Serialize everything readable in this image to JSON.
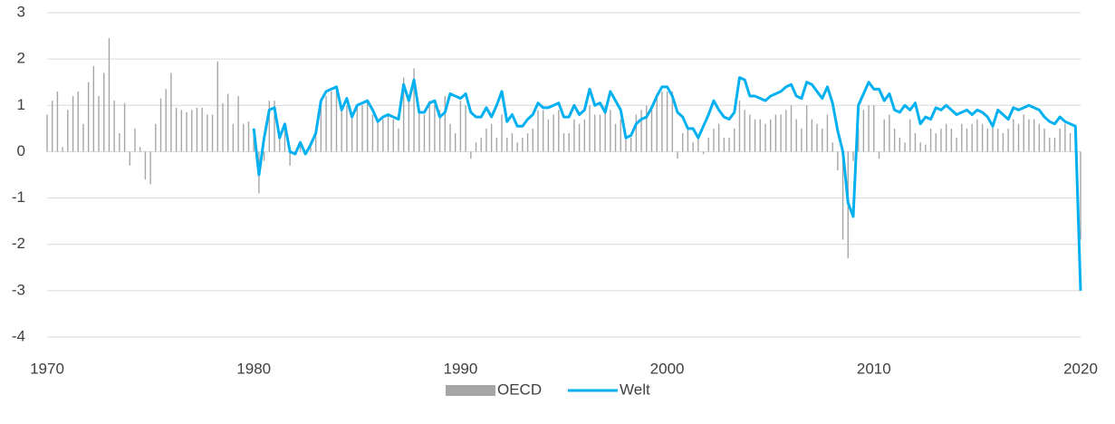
{
  "chart_data": {
    "type": "bar_line",
    "x": [
      1970,
      1970.25,
      1970.5,
      1970.75,
      1971,
      1971.25,
      1971.5,
      1971.75,
      1972,
      1972.25,
      1972.5,
      1972.75,
      1973,
      1973.25,
      1973.5,
      1973.75,
      1974,
      1974.25,
      1974.5,
      1974.75,
      1975,
      1975.25,
      1975.5,
      1975.75,
      1976,
      1976.25,
      1976.5,
      1976.75,
      1977,
      1977.25,
      1977.5,
      1977.75,
      1978,
      1978.25,
      1978.5,
      1978.75,
      1979,
      1979.25,
      1979.5,
      1979.75,
      1980,
      1980.25,
      1980.5,
      1980.75,
      1981,
      1981.25,
      1981.5,
      1981.75,
      1982,
      1982.25,
      1982.5,
      1982.75,
      1983,
      1983.25,
      1983.5,
      1983.75,
      1984,
      1984.25,
      1984.5,
      1984.75,
      1985,
      1985.25,
      1985.5,
      1985.75,
      1986,
      1986.25,
      1986.5,
      1986.75,
      1987,
      1987.25,
      1987.5,
      1987.75,
      1988,
      1988.25,
      1988.5,
      1988.75,
      1989,
      1989.25,
      1989.5,
      1989.75,
      1990,
      1990.25,
      1990.5,
      1990.75,
      1991,
      1991.25,
      1991.5,
      1991.75,
      1992,
      1992.25,
      1992.5,
      1992.75,
      1993,
      1993.25,
      1993.5,
      1993.75,
      1994,
      1994.25,
      1994.5,
      1994.75,
      1995,
      1995.25,
      1995.5,
      1995.75,
      1996,
      1996.25,
      1996.5,
      1996.75,
      1997,
      1997.25,
      1997.5,
      1997.75,
      1998,
      1998.25,
      1998.5,
      1998.75,
      1999,
      1999.25,
      1999.5,
      1999.75,
      2000,
      2000.25,
      2000.5,
      2000.75,
      2001,
      2001.25,
      2001.5,
      2001.75,
      2002,
      2002.25,
      2002.5,
      2002.75,
      2003,
      2003.25,
      2003.5,
      2003.75,
      2004,
      2004.25,
      2004.5,
      2004.75,
      2005,
      2005.25,
      2005.5,
      2005.75,
      2006,
      2006.25,
      2006.5,
      2006.75,
      2007,
      2007.25,
      2007.5,
      2007.75,
      2008,
      2008.25,
      2008.5,
      2008.75,
      2009,
      2009.25,
      2009.5,
      2009.75,
      2010,
      2010.25,
      2010.5,
      2010.75,
      2011,
      2011.25,
      2011.5,
      2011.75,
      2012,
      2012.25,
      2012.5,
      2012.75,
      2013,
      2013.25,
      2013.5,
      2013.75,
      2014,
      2014.25,
      2014.5,
      2014.75,
      2015,
      2015.25,
      2015.5,
      2015.75,
      2016,
      2016.25,
      2016.5,
      2016.75,
      2017,
      2017.25,
      2017.5,
      2017.75,
      2018,
      2018.25,
      2018.5,
      2018.75,
      2019,
      2019.25,
      2019.5,
      2019.75,
      2020
    ],
    "series": [
      {
        "name": "OECD",
        "type": "bar",
        "color": "#a6a6a6",
        "values": [
          0.8,
          1.1,
          1.3,
          0.1,
          0.9,
          1.2,
          1.3,
          0.6,
          1.5,
          1.85,
          1.2,
          1.7,
          2.45,
          1.1,
          0.4,
          1.05,
          -0.3,
          0.5,
          0.1,
          -0.6,
          -0.7,
          0.6,
          1.15,
          1.35,
          1.7,
          0.95,
          0.9,
          0.85,
          0.9,
          0.95,
          0.95,
          0.8,
          0.8,
          1.95,
          1.05,
          1.25,
          0.6,
          1.2,
          0.6,
          0.65,
          0.5,
          -0.9,
          -0.2,
          1.1,
          1.1,
          0.3,
          0.5,
          -0.3,
          0.0,
          0.2,
          0.0,
          0.2,
          0.4,
          1.1,
          1.2,
          1.3,
          1.3,
          0.9,
          1.0,
          0.8,
          1.0,
          1.0,
          1.1,
          0.8,
          0.7,
          0.7,
          0.8,
          0.7,
          0.5,
          1.6,
          1.1,
          1.8,
          0.9,
          0.8,
          1.1,
          1.0,
          0.9,
          1.2,
          0.6,
          0.4,
          1.1,
          1.0,
          -0.15,
          0.2,
          0.3,
          0.5,
          0.6,
          0.3,
          0.8,
          0.3,
          0.4,
          0.2,
          0.3,
          0.4,
          0.5,
          0.9,
          0.9,
          0.7,
          0.8,
          0.9,
          0.4,
          0.4,
          0.7,
          0.6,
          0.7,
          1.0,
          0.8,
          0.8,
          1.0,
          0.9,
          0.6,
          0.7,
          0.4,
          0.3,
          0.8,
          0.9,
          1.0,
          1.0,
          1.2,
          1.3,
          1.3,
          1.3,
          -0.15,
          0.4,
          0.5,
          0.2,
          0.3,
          -0.05,
          0.3,
          0.5,
          0.6,
          0.3,
          0.3,
          0.5,
          1.1,
          0.9,
          0.8,
          0.7,
          0.7,
          0.6,
          0.7,
          0.8,
          0.8,
          0.9,
          1.0,
          0.7,
          0.5,
          1.0,
          0.7,
          0.6,
          0.5,
          0.8,
          0.2,
          -0.4,
          -1.9,
          -2.3,
          -0.2,
          0.5,
          0.9,
          1.0,
          1.0,
          -0.15,
          0.7,
          0.8,
          0.5,
          0.3,
          0.2,
          0.7,
          0.4,
          0.2,
          0.15,
          0.5,
          0.4,
          0.5,
          0.6,
          0.5,
          0.3,
          0.6,
          0.5,
          0.6,
          0.7,
          0.6,
          0.5,
          0.6,
          0.5,
          0.4,
          0.5,
          0.7,
          0.6,
          0.8,
          0.7,
          0.7,
          0.6,
          0.5,
          0.3,
          0.3,
          0.5,
          0.6,
          0.4,
          0.4,
          -1.9
        ]
      },
      {
        "name": "Welt",
        "type": "line",
        "color": "#00b0f0",
        "values": [
          null,
          null,
          null,
          null,
          null,
          null,
          null,
          null,
          null,
          null,
          null,
          null,
          null,
          null,
          null,
          null,
          null,
          null,
          null,
          null,
          null,
          null,
          null,
          null,
          null,
          null,
          null,
          null,
          null,
          null,
          null,
          null,
          null,
          null,
          null,
          null,
          null,
          null,
          null,
          null,
          0.5,
          -0.5,
          0.3,
          0.9,
          0.95,
          0.3,
          0.6,
          0.0,
          -0.05,
          0.2,
          -0.05,
          0.15,
          0.4,
          1.1,
          1.3,
          1.35,
          1.4,
          0.9,
          1.15,
          0.75,
          1.0,
          1.05,
          1.1,
          0.9,
          0.65,
          0.75,
          0.8,
          0.75,
          0.7,
          1.45,
          1.1,
          1.55,
          0.85,
          0.85,
          1.05,
          1.1,
          0.75,
          0.85,
          1.25,
          1.2,
          1.15,
          1.25,
          0.85,
          0.75,
          0.75,
          0.95,
          0.75,
          1.0,
          1.3,
          0.65,
          0.8,
          0.55,
          0.55,
          0.7,
          0.8,
          1.05,
          0.95,
          0.95,
          1.0,
          1.05,
          0.75,
          0.75,
          1.0,
          0.8,
          0.9,
          1.35,
          1.0,
          1.05,
          0.85,
          1.3,
          1.1,
          0.9,
          0.3,
          0.35,
          0.6,
          0.7,
          0.75,
          0.95,
          1.2,
          1.4,
          1.4,
          1.2,
          0.85,
          0.75,
          0.5,
          0.5,
          0.3,
          0.55,
          0.8,
          1.1,
          0.9,
          0.75,
          0.7,
          0.85,
          1.6,
          1.55,
          1.2,
          1.2,
          1.15,
          1.1,
          1.2,
          1.25,
          1.3,
          1.4,
          1.45,
          1.2,
          1.15,
          1.5,
          1.45,
          1.3,
          1.15,
          1.4,
          1.05,
          0.45,
          0.0,
          -1.1,
          -1.4,
          1.0,
          1.25,
          1.5,
          1.35,
          1.35,
          1.1,
          1.25,
          0.9,
          0.85,
          1.0,
          0.9,
          1.05,
          0.6,
          0.75,
          0.7,
          0.95,
          0.9,
          1.0,
          0.9,
          0.8,
          0.85,
          0.9,
          0.8,
          0.9,
          0.85,
          0.75,
          0.55,
          0.9,
          0.8,
          0.7,
          0.95,
          0.9,
          0.95,
          1.0,
          0.95,
          0.9,
          0.75,
          0.65,
          0.6,
          0.75,
          0.65,
          0.6,
          0.55,
          -3.0
        ]
      }
    ],
    "xlim": [
      1970,
      2020
    ],
    "xticks": [
      1970,
      1980,
      1990,
      2000,
      2010,
      2020
    ],
    "ylim": [
      -4,
      3
    ],
    "yticks": [
      -4,
      -3,
      -2,
      -1,
      0,
      1,
      2,
      3
    ],
    "grid": true,
    "legend": "bottom"
  }
}
